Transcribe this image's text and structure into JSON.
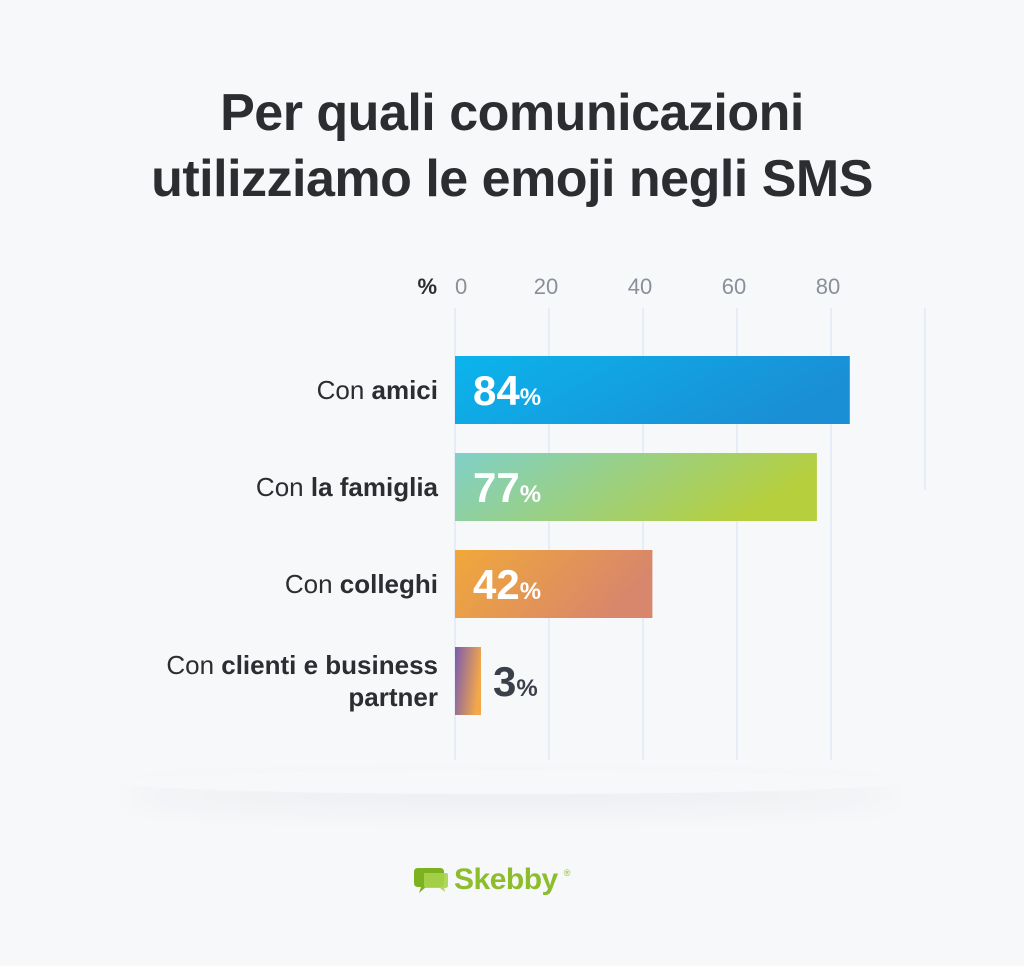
{
  "title": {
    "line1": "Per quali comunicazioni",
    "line2": "utilizziamo le emoji negli SMS"
  },
  "chart_data": {
    "type": "bar",
    "orientation": "horizontal",
    "unit_label": "%",
    "x_ticks": [
      "0",
      "20",
      "40",
      "60",
      "80"
    ],
    "xlim": [
      0,
      100
    ],
    "grid": true,
    "categories": [
      {
        "prefix": "Con ",
        "bold": "amici",
        "value": 84,
        "pct_sign": "%",
        "gradient": [
          "#0bb4ec",
          "#1a8fd6"
        ],
        "label_color": "#ffffff"
      },
      {
        "prefix": "Con ",
        "bold": "la famiglia",
        "value": 77,
        "pct_sign": "%",
        "gradient": [
          "#7fd0c8",
          "#b6cf3c"
        ],
        "label_color": "#ffffff"
      },
      {
        "prefix": "Con ",
        "bold": "colleghi",
        "value": 42,
        "pct_sign": "%",
        "gradient": [
          "#f0a83a",
          "#d8866c"
        ],
        "label_color": "#ffffff"
      },
      {
        "prefix": "Con ",
        "bold": "clienti e business partner",
        "value": 3,
        "pct_sign": "%",
        "gradient": [
          "#7a5ab0",
          "#f2a84a"
        ],
        "label_color": "#3b3f4a"
      }
    ]
  },
  "logo": {
    "name": "Skebby",
    "mark": "®",
    "icon": "speech-bubble-icon",
    "color": "#8dbd2c"
  }
}
